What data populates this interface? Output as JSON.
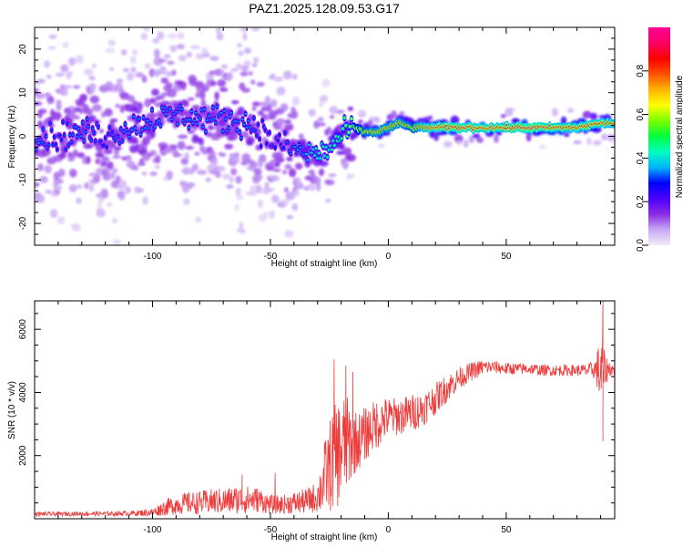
{
  "figure": {
    "title": "PAZ1.2025.128.09.53.G17"
  },
  "chart_data": [
    {
      "type": "heatmap",
      "xlabel": "Height of straight line (km)",
      "ylabel": "Frequency (Hz)",
      "xlim": [
        -150,
        96
      ],
      "ylim": [
        -25,
        25
      ],
      "xticks": [
        -100,
        -50,
        0,
        50
      ],
      "yticks": [
        -20,
        -10,
        0,
        10,
        20
      ],
      "grid": false,
      "ridge": {
        "x": [
          -150,
          -140,
          -130,
          -120,
          -110,
          -100,
          -90,
          -80,
          -70,
          -60,
          -55,
          -50,
          -45,
          -40,
          -35,
          -30,
          -25,
          -20,
          -15,
          -10,
          -5,
          0,
          5,
          10,
          15,
          20,
          30,
          40,
          50,
          60,
          70,
          80,
          90,
          96
        ],
        "freq": [
          0,
          0,
          1,
          0,
          2,
          4,
          5,
          4,
          4,
          3,
          2,
          -1,
          -2,
          -3,
          -4,
          -4,
          -3,
          0,
          2,
          1,
          1,
          2,
          3,
          2,
          2,
          2,
          2,
          2,
          2,
          2,
          2,
          2,
          3,
          3
        ],
        "amplitude": [
          0.35,
          0.3,
          0.35,
          0.3,
          0.35,
          0.35,
          0.35,
          0.35,
          0.35,
          0.35,
          0.3,
          0.3,
          0.3,
          0.35,
          0.4,
          0.45,
          0.45,
          0.5,
          0.6,
          0.7,
          0.75,
          0.75,
          0.75,
          0.7,
          0.8,
          0.85,
          0.9,
          0.85,
          0.85,
          0.95,
          0.85,
          0.85,
          0.85,
          0.8
        ]
      },
      "colorbar": {
        "label": "Normalized spectral amplitude",
        "ticks": [
          0.0,
          0.2,
          0.4,
          0.6,
          0.8
        ],
        "range": [
          0,
          1
        ],
        "colormap": [
          "#f2eafa",
          "#c8a8f5",
          "#8a2be2",
          "#4b00ff",
          "#0000ff",
          "#00b4ff",
          "#00ffc0",
          "#00ff3c",
          "#7cff00",
          "#ffff00",
          "#ffb400",
          "#ff5000",
          "#ff0000",
          "#ff0064",
          "#ff0096"
        ]
      }
    },
    {
      "type": "line",
      "xlabel": "Height of straight line (km)",
      "ylabel": "SNR (10 * v/v)",
      "xlim": [
        -150,
        96
      ],
      "ylim": [
        0,
        6900
      ],
      "xticks": [
        -100,
        -50,
        0,
        50
      ],
      "yticks": [
        2000,
        4000,
        6000
      ],
      "grid": false,
      "color": "#ee3b3b",
      "series": [
        {
          "x": [
            -150,
            -140,
            -130,
            -120,
            -110,
            -100,
            -95,
            -90,
            -85,
            -80,
            -75,
            -70,
            -65,
            -60,
            -55,
            -50,
            -45,
            -40,
            -35,
            -30,
            -28,
            -26,
            -24,
            -22,
            -20,
            -18,
            -16,
            -14,
            -12,
            -10,
            -8,
            -6,
            -4,
            -2,
            0,
            5,
            10,
            15,
            20,
            25,
            30,
            35,
            40,
            45,
            50,
            55,
            60,
            65,
            70,
            75,
            80,
            85,
            88,
            90,
            92,
            94,
            96
          ],
          "y": [
            150,
            150,
            160,
            160,
            170,
            200,
            350,
            450,
            500,
            500,
            550,
            550,
            600,
            600,
            600,
            450,
            450,
            500,
            550,
            700,
            1100,
            1500,
            1800,
            2000,
            2200,
            2350,
            2400,
            2450,
            2500,
            2650,
            2800,
            2950,
            3050,
            3150,
            3200,
            3250,
            3350,
            3500,
            3800,
            4150,
            4450,
            4650,
            4800,
            4800,
            4750,
            4750,
            4750,
            4700,
            4700,
            4700,
            4700,
            4700,
            4750,
            4600,
            4700,
            4750,
            4700
          ],
          "noise": [
            70,
            70,
            70,
            70,
            80,
            120,
            250,
            320,
            350,
            380,
            400,
            420,
            450,
            450,
            400,
            300,
            300,
            350,
            400,
            500,
            1000,
            1300,
            1600,
            1700,
            1700,
            1600,
            1300,
            1000,
            900,
            900,
            800,
            800,
            800,
            700,
            650,
            600,
            600,
            550,
            500,
            450,
            350,
            300,
            250,
            200,
            200,
            180,
            180,
            180,
            180,
            180,
            180,
            220,
            350,
            1300,
            500,
            250,
            200
          ],
          "spikes": [
            [
              91,
              6900
            ],
            [
              91,
              2450
            ],
            [
              -23,
              5050
            ],
            [
              -18,
              4850
            ],
            [
              -15,
              4650
            ],
            [
              -62,
              1400
            ],
            [
              -48,
              1450
            ]
          ]
        }
      ]
    }
  ]
}
